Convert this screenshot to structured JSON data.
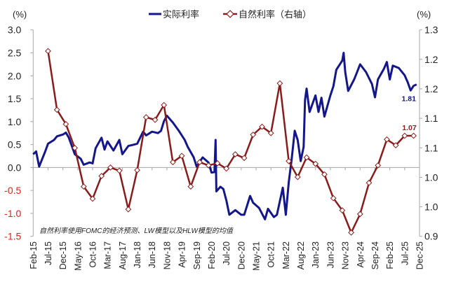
{
  "chart_data": {
    "type": "line",
    "legend": {
      "position": "top",
      "entries": [
        "实际利率",
        "自然利率（右轴）"
      ]
    },
    "left_axis": {
      "unit_label": "(%)",
      "ylim": [
        -1.5,
        3.0
      ],
      "ticks": [
        "3.0",
        "2.5",
        "2.0",
        "1.5",
        "1.0",
        "0.5",
        "0.0",
        "-0.5",
        "-1.0",
        "-1.5"
      ],
      "negative_tick_color": "#e02020"
    },
    "right_axis": {
      "unit_label": "(%)",
      "ylim": [
        0.88,
        1.27
      ],
      "ticks": [
        "1.3",
        "1.2",
        "1.2",
        "1.1",
        "1.1",
        "1.0",
        "1.0",
        "0.9"
      ]
    },
    "x_axis": {
      "range": [
        "2015-02",
        "2025-12"
      ],
      "ticks": [
        "Feb-15",
        "Jul-15",
        "Dec-15",
        "May-16",
        "Oct-16",
        "Mar-17",
        "Aug-17",
        "Jan-18",
        "Jun-18",
        "Nov-18",
        "Apr-19",
        "Sep-19",
        "Feb-20",
        "Jul-20",
        "Dec-20",
        "May-21",
        "Oct-21",
        "Mar-22",
        "Aug-22",
        "Jan-23",
        "Jun-23",
        "Nov-23",
        "Apr-24",
        "Sep-24",
        "Feb-25",
        "Jul-25",
        "Dec-25"
      ]
    },
    "grid": false,
    "note": "自然利率使用FOMC的经济预测、LW模型以及HLW模型的均值",
    "series": [
      {
        "name": "实际利率",
        "axis": "left",
        "color": "#14168c",
        "end_label": "1.81",
        "points": [
          [
            "2015-02",
            0.29
          ],
          [
            "2015-03",
            0.35
          ],
          [
            "2015-04",
            0.02
          ],
          [
            "2015-06",
            0.34
          ],
          [
            "2015-07",
            0.52
          ],
          [
            "2015-09",
            0.6
          ],
          [
            "2015-10",
            0.68
          ],
          [
            "2015-12",
            0.72
          ],
          [
            "2016-01",
            0.76
          ],
          [
            "2016-02",
            0.65
          ],
          [
            "2016-03",
            0.47
          ],
          [
            "2016-04",
            0.29
          ],
          [
            "2016-06",
            0.19
          ],
          [
            "2016-07",
            0.06
          ],
          [
            "2016-09",
            0.11
          ],
          [
            "2016-10",
            0.09
          ],
          [
            "2016-11",
            0.42
          ],
          [
            "2017-01",
            0.65
          ],
          [
            "2017-02",
            0.39
          ],
          [
            "2017-03",
            0.57
          ],
          [
            "2017-05",
            0.37
          ],
          [
            "2017-07",
            0.6
          ],
          [
            "2017-08",
            0.29
          ],
          [
            "2017-10",
            0.47
          ],
          [
            "2017-12",
            0.5
          ],
          [
            "2018-01",
            0.52
          ],
          [
            "2018-03",
            0.78
          ],
          [
            "2018-04",
            0.7
          ],
          [
            "2018-06",
            0.78
          ],
          [
            "2018-08",
            0.75
          ],
          [
            "2018-09",
            0.8
          ],
          [
            "2018-10",
            1.01
          ],
          [
            "2018-11",
            1.13
          ],
          [
            "2019-01",
            0.98
          ],
          [
            "2019-03",
            0.8
          ],
          [
            "2019-05",
            0.6
          ],
          [
            "2019-06",
            0.45
          ],
          [
            "2019-08",
            0.22
          ],
          [
            "2019-09",
            0.02
          ],
          [
            "2019-11",
            0.22
          ],
          [
            "2020-01",
            0.11
          ],
          [
            "2020-02",
            -0.11
          ],
          [
            "2020-03",
            -0.1
          ],
          [
            "2020-03-12",
            0.6
          ],
          [
            "2020-03-20",
            -0.52
          ],
          [
            "2020-05",
            -0.42
          ],
          [
            "2020-06",
            -0.47
          ],
          [
            "2020-07",
            -0.72
          ],
          [
            "2020-08",
            -1.03
          ],
          [
            "2020-10",
            -0.93
          ],
          [
            "2020-12",
            -1.03
          ],
          [
            "2021-01",
            -1.03
          ],
          [
            "2021-03",
            -0.62
          ],
          [
            "2021-04",
            -0.77
          ],
          [
            "2021-06",
            -0.88
          ],
          [
            "2021-08",
            -1.13
          ],
          [
            "2021-09",
            -0.9
          ],
          [
            "2021-11",
            -1.08
          ],
          [
            "2021-12",
            -1.03
          ],
          [
            "2022-02",
            -0.44
          ],
          [
            "2022-03",
            -1.03
          ],
          [
            "2022-04",
            -0.32
          ],
          [
            "2022-05",
            0.19
          ],
          [
            "2022-06",
            0.8
          ],
          [
            "2022-07",
            0.6
          ],
          [
            "2022-08",
            0.14
          ],
          [
            "2022-09",
            0.45
          ],
          [
            "2022-09-15",
            1.47
          ],
          [
            "2022-10",
            1.72
          ],
          [
            "2022-11",
            1.21
          ],
          [
            "2023-01",
            1.57
          ],
          [
            "2023-02",
            1.21
          ],
          [
            "2023-03",
            1.52
          ],
          [
            "2023-04",
            1.11
          ],
          [
            "2023-06",
            1.57
          ],
          [
            "2023-07",
            1.77
          ],
          [
            "2023-08",
            2.13
          ],
          [
            "2023-10",
            2.33
          ],
          [
            "2023-10-15",
            2.5
          ],
          [
            "2023-11",
            2.08
          ],
          [
            "2023-12",
            1.67
          ],
          [
            "2024-02",
            1.92
          ],
          [
            "2024-03",
            2.08
          ],
          [
            "2024-04",
            2.25
          ],
          [
            "2024-06",
            2.08
          ],
          [
            "2024-08",
            1.82
          ],
          [
            "2024-09",
            1.53
          ],
          [
            "2024-10",
            1.92
          ],
          [
            "2024-12",
            2.15
          ],
          [
            "2025-01",
            2.3
          ],
          [
            "2025-02",
            1.92
          ],
          [
            "2025-03",
            2.22
          ],
          [
            "2025-05",
            2.17
          ],
          [
            "2025-07",
            2.01
          ],
          [
            "2025-08",
            1.86
          ],
          [
            "2025-09",
            1.68
          ],
          [
            "2025-10",
            1.78
          ],
          [
            "2025-11",
            1.81
          ]
        ]
      },
      {
        "name": "自然利率（右轴）",
        "axis": "right",
        "color": "#8b1a1a",
        "marker": "diamond",
        "end_label": "1.07",
        "points": [
          [
            "2015-07",
            1.23
          ],
          [
            "2015-10",
            1.119
          ],
          [
            "2016-01",
            1.092
          ],
          [
            "2016-04",
            1.047
          ],
          [
            "2016-07",
            0.974
          ],
          [
            "2016-10",
            0.951
          ],
          [
            "2017-01",
            0.994
          ],
          [
            "2017-04",
            1.01
          ],
          [
            "2017-07",
            1.004
          ],
          [
            "2017-10",
            0.931
          ],
          [
            "2018-01",
            1.005
          ],
          [
            "2018-04",
            1.105
          ],
          [
            "2018-07",
            1.1
          ],
          [
            "2018-10",
            1.128
          ],
          [
            "2019-01",
            1.02
          ],
          [
            "2019-04",
            1.032
          ],
          [
            "2019-07",
            0.974
          ],
          [
            "2019-10",
            1.02
          ],
          [
            "2020-01",
            1.014
          ],
          [
            "2020-04",
            1.018
          ],
          [
            "2020-07",
            1.008
          ],
          [
            "2020-10",
            1.035
          ],
          [
            "2021-01",
            1.028
          ],
          [
            "2021-04",
            1.072
          ],
          [
            "2021-07",
            1.087
          ],
          [
            "2021-10",
            1.075
          ],
          [
            "2022-01",
            1.169
          ],
          [
            "2022-04",
            1.022
          ],
          [
            "2022-07",
            0.992
          ],
          [
            "2022-10",
            1.029
          ],
          [
            "2023-01",
            1.017
          ],
          [
            "2023-04",
            0.997
          ],
          [
            "2023-07",
            0.952
          ],
          [
            "2023-10",
            0.929
          ],
          [
            "2024-01",
            0.887
          ],
          [
            "2024-04",
            0.922
          ],
          [
            "2024-07",
            0.981
          ],
          [
            "2024-10",
            1.014
          ],
          [
            "2025-01",
            1.063
          ],
          [
            "2025-04",
            1.052
          ],
          [
            "2025-07",
            1.07
          ],
          [
            "2025-10",
            1.07
          ]
        ]
      }
    ]
  }
}
